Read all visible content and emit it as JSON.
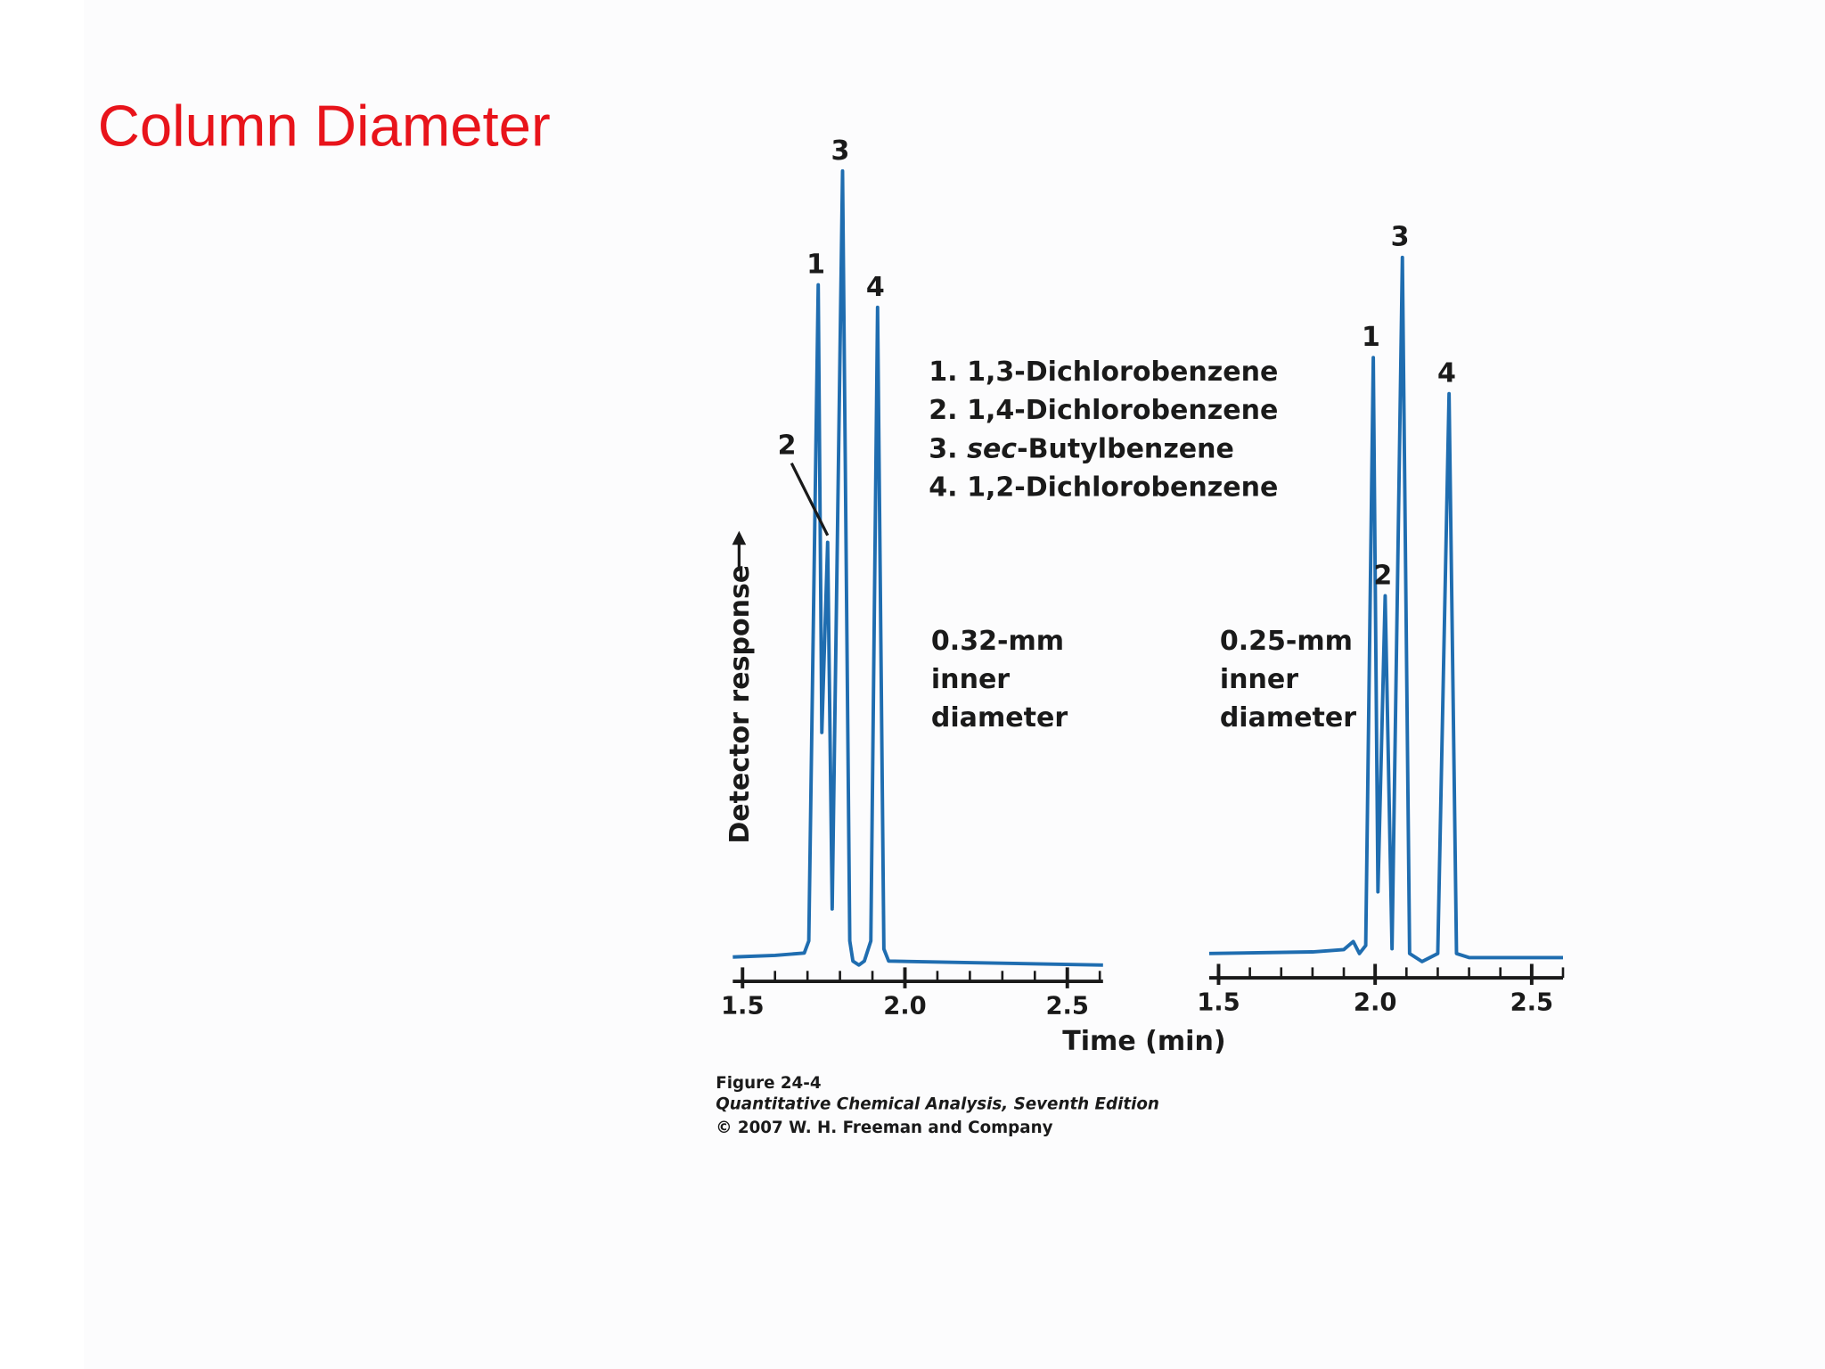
{
  "title": "Column Diameter",
  "legend": [
    {
      "number": "1.",
      "name": "1,3-Dichlorobenzene"
    },
    {
      "number": "2.",
      "name": "1,4-Dichlorobenzene"
    },
    {
      "number": "3.",
      "prefix": "sec",
      "name": "-Butylbenzene"
    },
    {
      "number": "4.",
      "name": "1,2-Dichlorobenzene"
    }
  ],
  "xlabel": "Time (min)",
  "ylabel": "Detector response",
  "caption": {
    "figure": "Figure 24-4",
    "book": "Quantitative Chemical Analysis, Seventh Edition",
    "copyright": "© 2007 W. H. Freeman and Company"
  },
  "chart_data": [
    {
      "type": "line",
      "subtitle": [
        "0.32-mm",
        "inner",
        "diameter"
      ],
      "x": [
        1.47,
        1.6,
        1.69,
        1.704,
        1.733,
        1.744,
        1.762,
        1.776,
        1.808,
        1.83,
        1.84,
        1.858,
        1.875,
        1.895,
        1.916,
        1.935,
        1.95,
        2.2,
        2.61
      ],
      "series": [
        {
          "color": "#1f6db0",
          "values": [
            1,
            1.2,
            1.5,
            3,
            84.8,
            29,
            52.7,
            7,
            99,
            3,
            0.5,
            0,
            0.5,
            3,
            82,
            2,
            0.5,
            0.3,
            0
          ]
        }
      ],
      "xlim": [
        1.47,
        2.61
      ],
      "ylim": [
        0,
        100
      ],
      "xticks": [
        1.5,
        {
          "value": 2,
          "label": "2.0"
        },
        2.5
      ],
      "xminorticks": [
        1.6,
        1.7,
        1.8,
        1.9,
        2.1,
        2.2,
        2.3,
        2.4,
        2.6
      ],
      "annotations": [
        "1",
        "2",
        "3",
        "4"
      ]
    },
    {
      "type": "line",
      "subtitle": [
        "0.25-mm",
        "inner",
        "diameter"
      ],
      "x": [
        1.47,
        1.8,
        1.9,
        1.93,
        1.95,
        1.97,
        1.994,
        2.009,
        2.032,
        2.054,
        2.087,
        2.11,
        2.15,
        2.2,
        2.236,
        2.26,
        2.3,
        2.6
      ],
      "series": [
        {
          "color": "#1f6db0",
          "values": [
            1,
            1.2,
            1.5,
            2.5,
            1,
            2,
            75.3,
            8.7,
            45.6,
            1.6,
            87.8,
            1,
            0,
            1,
            70.8,
            1,
            0.5,
            0.5
          ]
        }
      ],
      "xlim": [
        1.47,
        2.6
      ],
      "ylim": [
        0,
        100
      ],
      "xticks": [
        1.5,
        {
          "value": 2,
          "label": "2.0"
        },
        2.5
      ],
      "xminorticks": [
        1.6,
        1.7,
        1.8,
        1.9,
        2.1,
        2.2,
        2.3,
        2.4,
        2.6
      ],
      "annotations": [
        "1",
        "2",
        "3",
        "4"
      ]
    }
  ]
}
